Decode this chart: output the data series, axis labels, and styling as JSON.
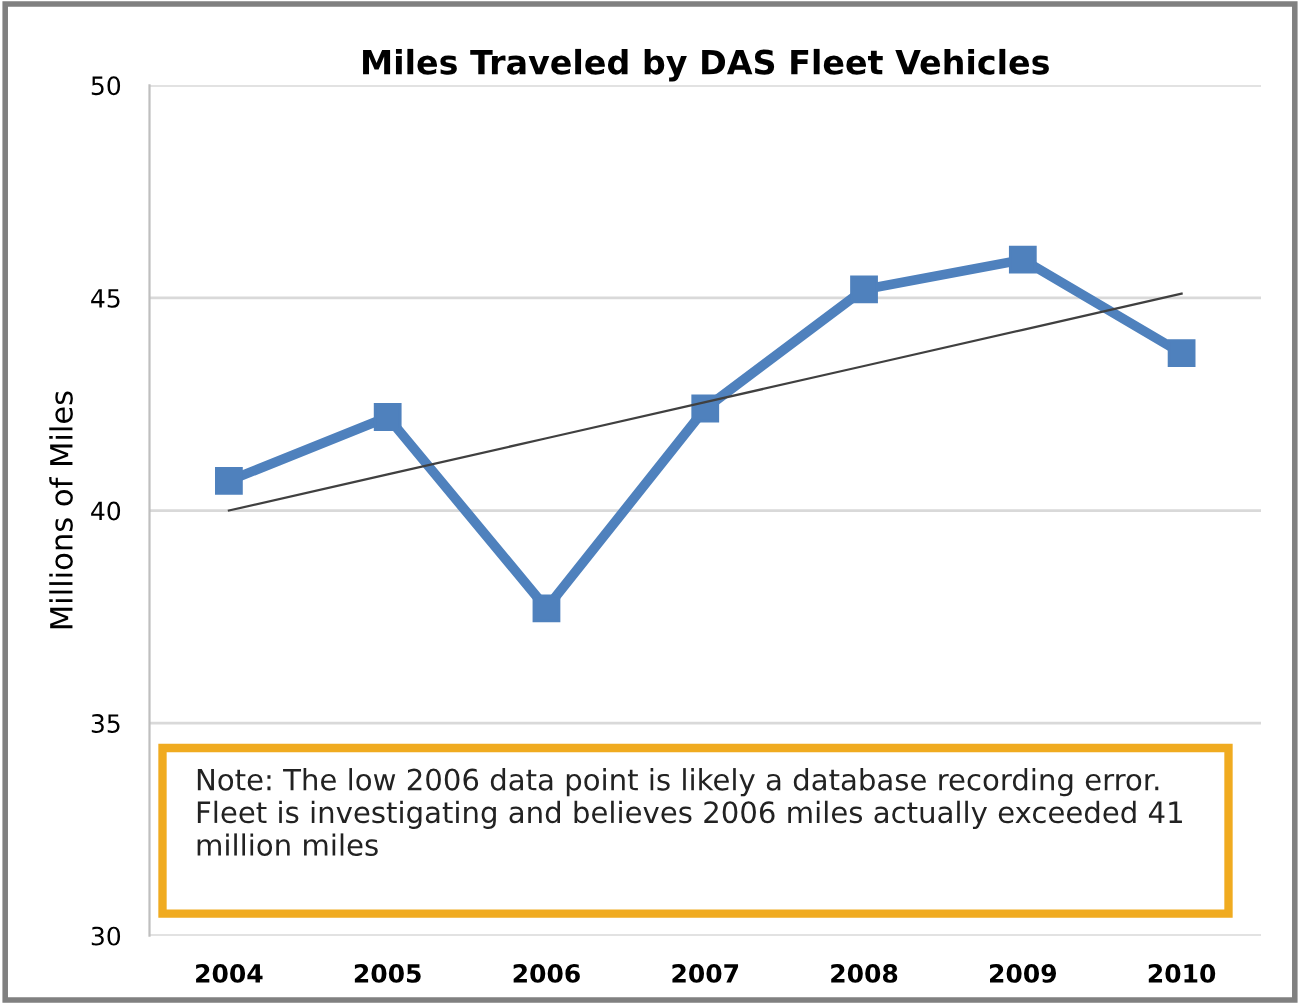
{
  "chart_data": {
    "type": "line",
    "title": "Miles Traveled by DAS Fleet Vehicles",
    "ylabel": "Millions of Miles",
    "categories": [
      "2004",
      "2005",
      "2006",
      "2007",
      "2008",
      "2009",
      "2010"
    ],
    "series": [
      {
        "color": "#4f81bd",
        "values": [
          40.7,
          42.2,
          37.7,
          42.4,
          45.2,
          45.9,
          43.7
        ],
        "marker": "square"
      },
      {
        "type": "line",
        "color": "#404040",
        "values": [
          40.0,
          40.85,
          41.7,
          42.55,
          43.4,
          44.25,
          45.1
        ],
        "marker": "none"
      }
    ],
    "ylim": [
      30,
      50
    ],
    "yticks": [
      30,
      35,
      40,
      45,
      50
    ],
    "grid": "y",
    "legend": false,
    "annotations": [
      "Note: The low 2006 data point is likely a database recording error. Fleet is investigating and believes 2006 miles actually exceeded 41 million miles"
    ]
  }
}
